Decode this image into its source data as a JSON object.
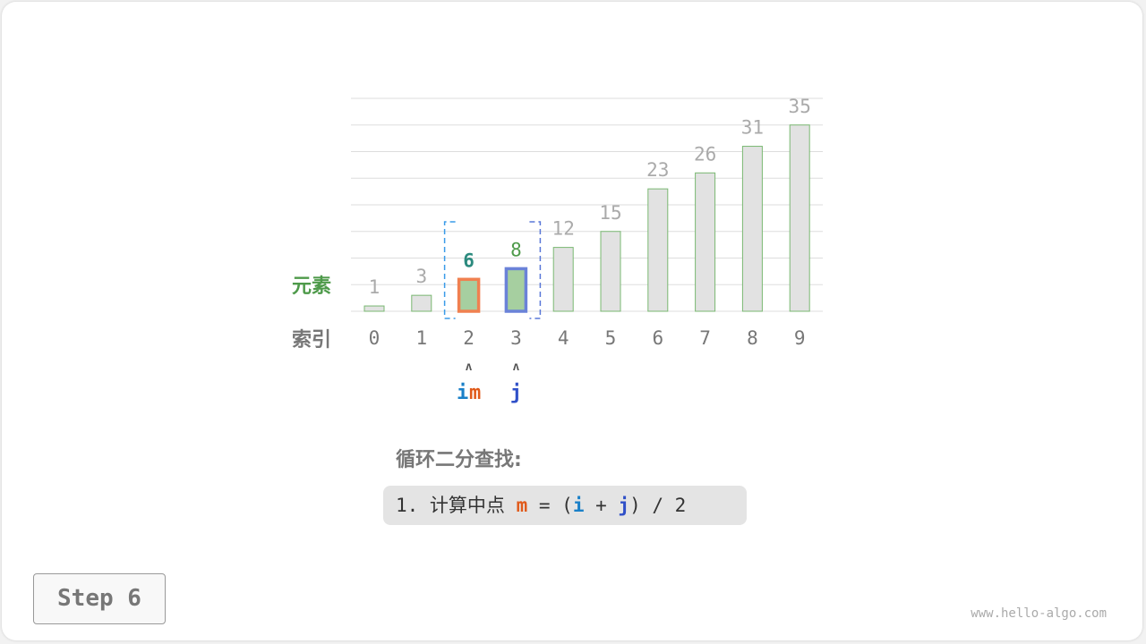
{
  "chart_data": {
    "type": "bar",
    "categories": [
      "0",
      "1",
      "2",
      "3",
      "4",
      "5",
      "6",
      "7",
      "8",
      "9"
    ],
    "values": [
      1,
      3,
      6,
      8,
      12,
      15,
      23,
      26,
      31,
      35
    ],
    "ylim": [
      0,
      40
    ],
    "grid": true,
    "row_labels": {
      "values": "元素",
      "index": "索引"
    },
    "highlight": {
      "i": 2,
      "m": 2,
      "j": 3
    },
    "colors": {
      "bar": "#e2e2e2",
      "bar_stroke": "#7ab872",
      "range_fill": "#a6cfa0",
      "m": "#f08050",
      "j": "#6a82d8",
      "label": "#aaaaaa",
      "green": "#4e9a4a",
      "teal": "#2b8a7e"
    }
  },
  "pointers": {
    "i": "i",
    "m": "m",
    "j": "j",
    "arrow": "ʌ"
  },
  "title": "循环二分查找:",
  "formula": {
    "prefix": "1. 计算中点 ",
    "m": "m",
    "eq": " = (",
    "i": "i",
    "plus": " + ",
    "j": "j",
    "suffix": ") / 2"
  },
  "step_label": "Step 6",
  "watermark": "www.hello-algo.com"
}
